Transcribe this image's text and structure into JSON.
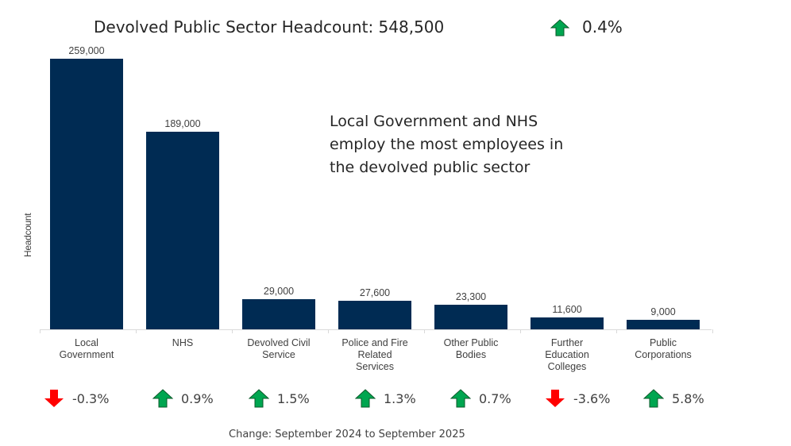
{
  "header": {
    "title": "Devolved Public Sector Headcount: 548,500",
    "total_change": "0.4%",
    "total_change_direction": "up"
  },
  "annotation": "Local Government and NHS employ the most employees in the devolved public sector",
  "footer": "Change: September 2024 to September 2025",
  "colors": {
    "bar": "#002b53",
    "up": "#00a650",
    "down": "#ff0000"
  },
  "chart_data": {
    "type": "bar",
    "title": "Devolved Public Sector Headcount: 548,500",
    "xlabel": "",
    "ylabel": "Headcount",
    "ylim": [
      0,
      259000
    ],
    "grid": false,
    "legend": null,
    "categories": [
      "Local Government",
      "NHS",
      "Devolved Civil Service",
      "Police and Fire Related Services",
      "Other Public Bodies",
      "Further Education Colleges",
      "Public Corporations"
    ],
    "values": [
      259000,
      189000,
      29000,
      27600,
      23300,
      11600,
      9000
    ],
    "value_labels": [
      "259,000",
      "189,000",
      "29,000",
      "27,600",
      "23,300",
      "11,600",
      "9,000"
    ],
    "annual_change": [
      "-0.3%",
      "0.9%",
      "1.5%",
      "1.3%",
      "0.7%",
      "-3.6%",
      "5.8%"
    ],
    "annual_change_direction": [
      "down",
      "up",
      "up",
      "up",
      "up",
      "down",
      "up"
    ],
    "annotations": [
      "Local Government and NHS employ the most employees in the devolved public sector",
      "Change: September 2024 to September 2025"
    ]
  },
  "bars": [
    {
      "label_lines": [
        "Local",
        "Government"
      ],
      "value": "259,000",
      "change": "-0.3%",
      "dir": "down"
    },
    {
      "label_lines": [
        "NHS"
      ],
      "value": "189,000",
      "change": "0.9%",
      "dir": "up"
    },
    {
      "label_lines": [
        "Devolved Civil",
        "Service"
      ],
      "value": "29,000",
      "change": "1.5%",
      "dir": "up"
    },
    {
      "label_lines": [
        "Police and Fire",
        "Related",
        "Services"
      ],
      "value": "27,600",
      "change": "1.3%",
      "dir": "up"
    },
    {
      "label_lines": [
        "Other Public",
        "Bodies"
      ],
      "value": "23,300",
      "change": "0.7%",
      "dir": "up"
    },
    {
      "label_lines": [
        "Further",
        "Education",
        "Colleges"
      ],
      "value": "11,600",
      "change": "-3.6%",
      "dir": "down"
    },
    {
      "label_lines": [
        "Public",
        "Corporations"
      ],
      "value": "9,000",
      "change": "5.8%",
      "dir": "up"
    }
  ]
}
